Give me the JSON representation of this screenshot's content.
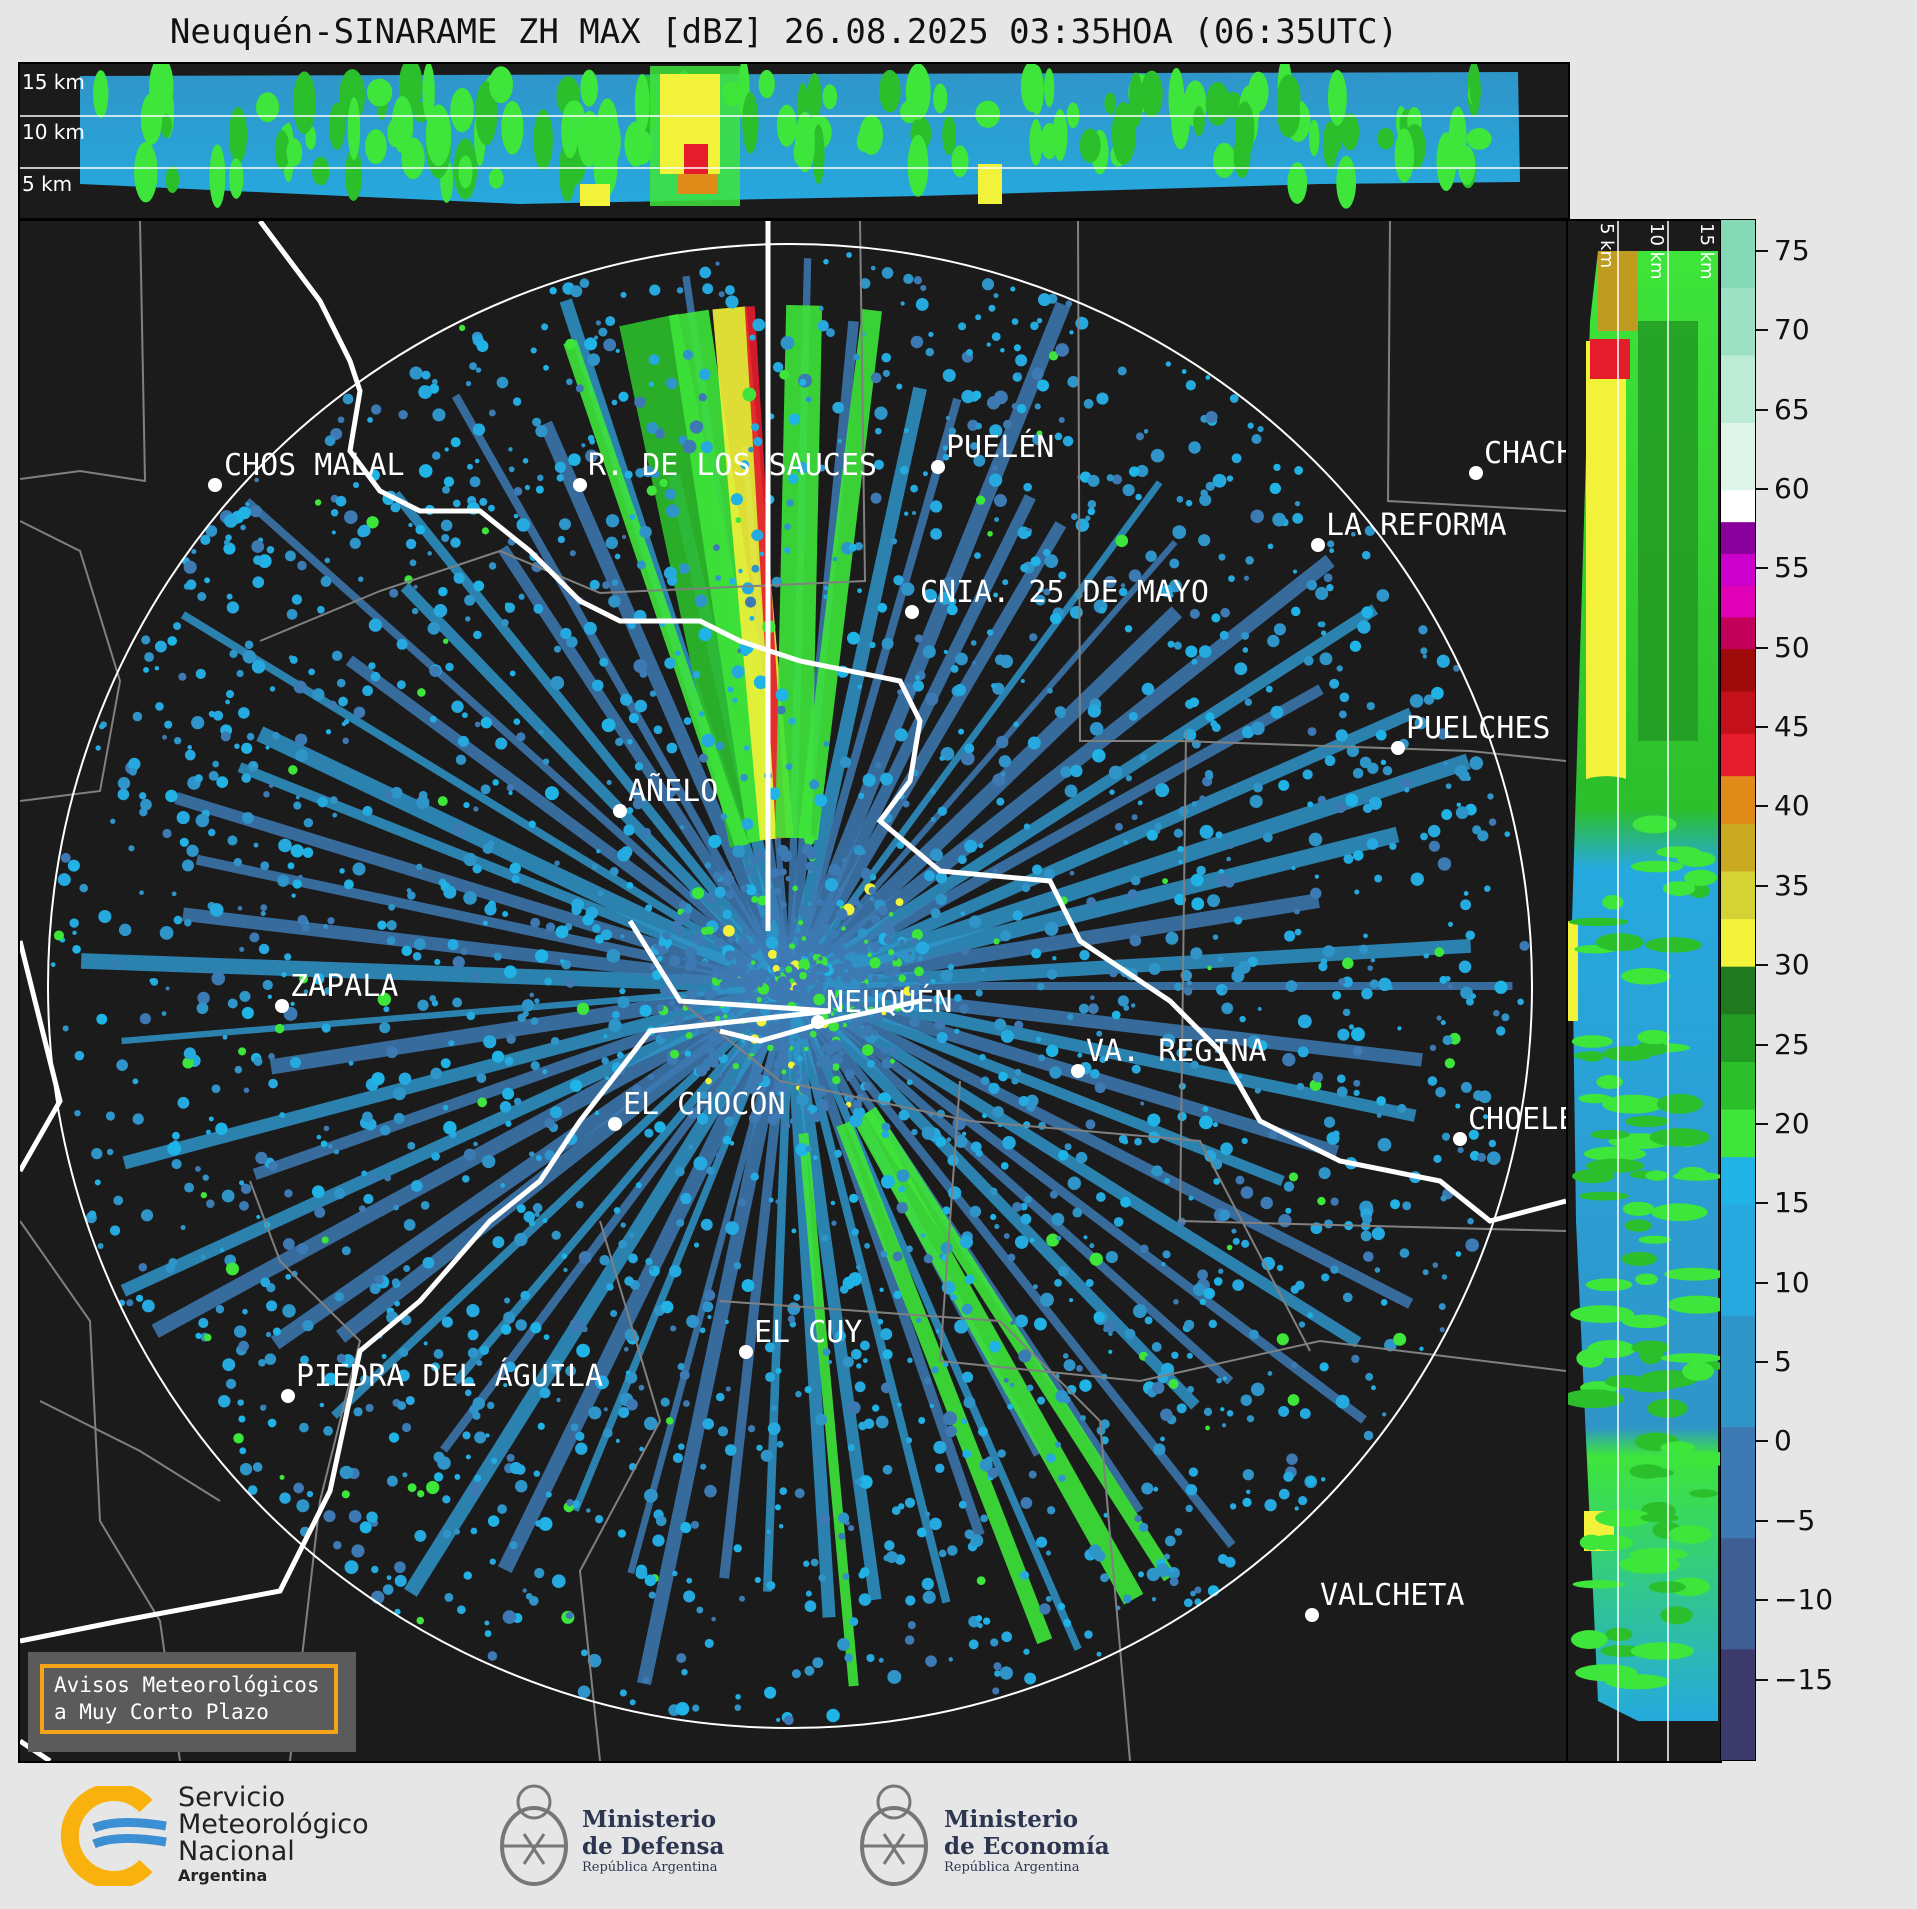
{
  "title": "Neuquén-SINARAME ZH MAX [dBZ] 26.08.2025 03:35HOA (06:35UTC)",
  "top_panel": {
    "km_labels": [
      "15 km",
      "10 km",
      "5 km"
    ]
  },
  "side_panel": {
    "km_labels": [
      "5 km",
      "10 km",
      "15 km"
    ]
  },
  "cities": [
    {
      "name": "CHOS MALAL"
    },
    {
      "name": "R. DE LOS SAUCES"
    },
    {
      "name": "PUELÉN"
    },
    {
      "name": "CHACH"
    },
    {
      "name": "LA REFORMA"
    },
    {
      "name": "CNIA. 25 DE MAYO"
    },
    {
      "name": "PUELCHES"
    },
    {
      "name": "AÑELO"
    },
    {
      "name": "ZAPALA"
    },
    {
      "name": "NEUQUÉN"
    },
    {
      "name": "VA. REGINA"
    },
    {
      "name": "EL CHOCÓN"
    },
    {
      "name": "CHOELE"
    },
    {
      "name": "EL CUY"
    },
    {
      "name": "PIEDRA DEL ÁGUILA"
    },
    {
      "name": "VALCHETA"
    }
  ],
  "colorbar": {
    "ticks": [
      "75",
      "70",
      "65",
      "60",
      "55",
      "50",
      "45",
      "40",
      "35",
      "30",
      "25",
      "20",
      "15",
      "10",
      "5",
      "0",
      "−5",
      "−10",
      "−15"
    ],
    "range": [
      -20,
      77
    ],
    "bands": [
      {
        "from": -20,
        "to": 15,
        "colors": [
          "#3b3a6b",
          "#3f5e94",
          "#3d7ab3",
          "#2f95c9",
          "#26a9de"
        ]
      },
      {
        "from": 15,
        "to": 18,
        "color": "#1fb3e6"
      },
      {
        "from": 18,
        "to": 30,
        "colors": [
          "#3ee53a",
          "#2cbf2c",
          "#239a24",
          "#1f7a1f"
        ]
      },
      {
        "from": 30,
        "to": 42,
        "colors": [
          "#f2f23a",
          "#d4d234",
          "#c9a91f",
          "#e08a1a"
        ]
      },
      {
        "from": 42,
        "to": 50,
        "colors": [
          "#e51c2c",
          "#c4101a",
          "#9e0a0a"
        ]
      },
      {
        "from": 50,
        "to": 58,
        "colors": [
          "#c2005a",
          "#e000b8",
          "#cc00cc",
          "#8a009c"
        ]
      },
      {
        "from": 58,
        "to": 60,
        "color": "#ffffff"
      },
      {
        "from": 60,
        "to": 77,
        "colors": [
          "#dff5ea",
          "#bcebd6",
          "#9ee0c4",
          "#86d9b6"
        ]
      }
    ]
  },
  "avisos": {
    "line1": "Avisos Meteorológicos",
    "line2": "a Muy Corto Plazo"
  },
  "logos": {
    "smn": {
      "line1": "Servicio",
      "line2": "Meteorológico",
      "line3": "Nacional",
      "line4": "Argentina"
    },
    "defensa": {
      "line1": "Ministerio",
      "line2": "de Defensa",
      "line3": "República Argentina"
    },
    "economia": {
      "line1": "Ministerio",
      "line2": "de Economía",
      "line3": "República Argentina"
    }
  },
  "colors": {
    "background": "#e6e6e6",
    "map": "#1b1b1b",
    "accent_border": "#f5a418"
  }
}
